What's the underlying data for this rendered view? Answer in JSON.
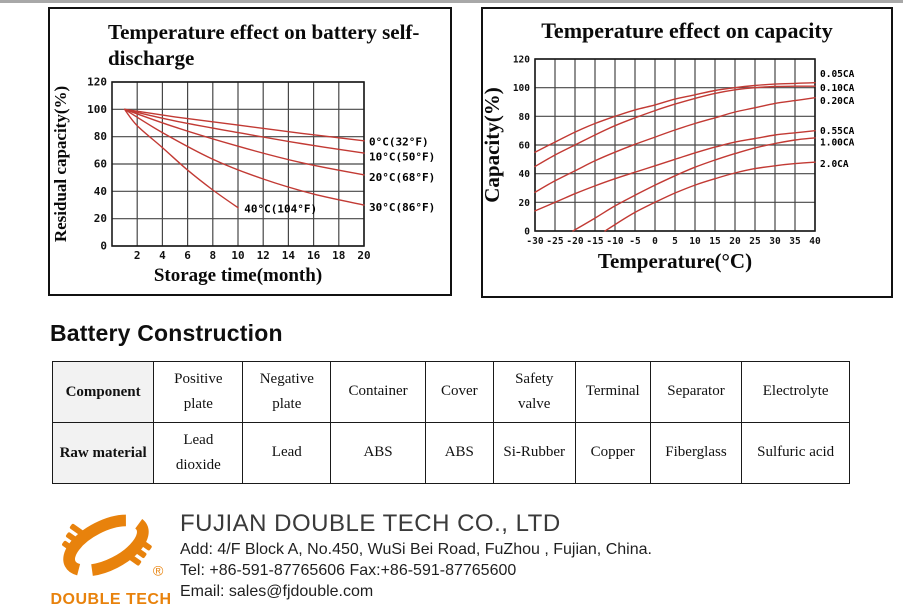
{
  "page": {
    "background": "#ffffff",
    "accent_red": "#c23a34",
    "grid_color": "#474747",
    "brand_orange": "#e8820c"
  },
  "chart_data": [
    {
      "type": "line",
      "title": "Temperature effect on battery self-discharge",
      "xlabel": "Storage time(month)",
      "ylabel": "Residual capacity(%)",
      "xlim": [
        0,
        20
      ],
      "ylim": [
        0,
        120
      ],
      "xticks": [
        2,
        4,
        6,
        8,
        10,
        12,
        14,
        16,
        18,
        20
      ],
      "yticks": [
        0,
        20,
        40,
        60,
        80,
        100,
        120
      ],
      "grid": true,
      "legend_position": "right-of-plot",
      "line_color": "#c23a34",
      "series": [
        {
          "name": "0°C(32°F)",
          "label_y": 76,
          "points": [
            [
              1,
              100
            ],
            [
              5,
              94.5
            ],
            [
              10,
              88.5
            ],
            [
              15,
              82.5
            ],
            [
              20,
              77
            ]
          ]
        },
        {
          "name": "10°C(50°F)",
          "label_y": 65,
          "points": [
            [
              1,
              100
            ],
            [
              5,
              91.5
            ],
            [
              10,
              83
            ],
            [
              15,
              75
            ],
            [
              20,
              68
            ]
          ]
        },
        {
          "name": "20°C(68°F)",
          "label_y": 50,
          "points": [
            [
              1,
              100
            ],
            [
              5,
              87
            ],
            [
              10,
              73
            ],
            [
              15,
              61
            ],
            [
              20,
              52
            ]
          ]
        },
        {
          "name": "30°C(86°F)",
          "label_y": 28,
          "points": [
            [
              1,
              100
            ],
            [
              4,
              83
            ],
            [
              8,
              63.5
            ],
            [
              12,
              49
            ],
            [
              16,
              38
            ],
            [
              20,
              30
            ]
          ]
        },
        {
          "name": "40°C(104°F)",
          "label_pos": [
            10.5,
            27
          ],
          "points": [
            [
              1,
              100
            ],
            [
              2,
              88
            ],
            [
              4,
              72
            ],
            [
              6,
              55.5
            ],
            [
              8,
              41
            ],
            [
              10,
              28
            ]
          ]
        }
      ]
    },
    {
      "type": "line",
      "title": "Temperature effect on capacity",
      "xlabel": "Temperature(°C)",
      "ylabel": "Capacity(%)",
      "xlim": [
        -30,
        40
      ],
      "ylim": [
        0,
        120
      ],
      "xticks": [
        -30,
        -25,
        -20,
        -15,
        -10,
        -5,
        0,
        5,
        10,
        15,
        20,
        25,
        30,
        35,
        40
      ],
      "yticks": [
        0,
        20,
        40,
        60,
        80,
        100,
        120
      ],
      "grid": true,
      "legend_position": "right-of-plot",
      "line_color": "#c23a34",
      "series": [
        {
          "name": "0.05CA",
          "label_y": 110,
          "points": [
            [
              -30,
              55
            ],
            [
              -25,
              62
            ],
            [
              -20,
              69
            ],
            [
              -15,
              75
            ],
            [
              -10,
              80
            ],
            [
              -5,
              84.5
            ],
            [
              0,
              88
            ],
            [
              5,
              92
            ],
            [
              10,
              95
            ],
            [
              15,
              98
            ],
            [
              20,
              100
            ],
            [
              25,
              101.5
            ],
            [
              30,
              102.5
            ],
            [
              35,
              103
            ],
            [
              40,
              103.5
            ]
          ]
        },
        {
          "name": "0.10CA",
          "label_y": 100,
          "points": [
            [
              -30,
              45
            ],
            [
              -25,
              53
            ],
            [
              -20,
              60
            ],
            [
              -15,
              67
            ],
            [
              -10,
              73.5
            ],
            [
              -5,
              79
            ],
            [
              0,
              84
            ],
            [
              5,
              88.5
            ],
            [
              10,
              92.5
            ],
            [
              15,
              96
            ],
            [
              20,
              98.5
            ],
            [
              25,
              100
            ],
            [
              30,
              100.8
            ],
            [
              35,
              101
            ],
            [
              40,
              101
            ]
          ]
        },
        {
          "name": "0.20CA",
          "label_y": 91,
          "points": [
            [
              -30,
              27
            ],
            [
              -25,
              35
            ],
            [
              -20,
              42
            ],
            [
              -15,
              49
            ],
            [
              -10,
              55
            ],
            [
              -5,
              60.5
            ],
            [
              0,
              65.5
            ],
            [
              5,
              70.5
            ],
            [
              10,
              75
            ],
            [
              15,
              79
            ],
            [
              20,
              83
            ],
            [
              25,
              86
            ],
            [
              30,
              89
            ],
            [
              35,
              91
            ],
            [
              40,
              93
            ]
          ]
        },
        {
          "name": "0.55CA",
          "label_y": 70,
          "points": [
            [
              -30,
              14
            ],
            [
              -25,
              20
            ],
            [
              -20,
              26
            ],
            [
              -15,
              31.5
            ],
            [
              -10,
              36.5
            ],
            [
              -5,
              41
            ],
            [
              0,
              45.5
            ],
            [
              5,
              50
            ],
            [
              10,
              54.5
            ],
            [
              15,
              58.5
            ],
            [
              20,
              62
            ],
            [
              25,
              64.5
            ],
            [
              30,
              67
            ],
            [
              35,
              68.5
            ],
            [
              40,
              70
            ]
          ]
        },
        {
          "name": "1.00CA",
          "label_y": 62,
          "points": [
            [
              -20.5,
              0
            ],
            [
              -15,
              9
            ],
            [
              -10,
              17.5
            ],
            [
              -5,
              25
            ],
            [
              0,
              32
            ],
            [
              5,
              38.5
            ],
            [
              10,
              44.5
            ],
            [
              15,
              49.5
            ],
            [
              20,
              54
            ],
            [
              25,
              58
            ],
            [
              30,
              61
            ],
            [
              35,
              63.5
            ],
            [
              40,
              65
            ]
          ]
        },
        {
          "name": "2.0CA",
          "label_y": 47,
          "points": [
            [
              -12.5,
              0
            ],
            [
              -10,
              4.5
            ],
            [
              -5,
              13
            ],
            [
              0,
              20
            ],
            [
              5,
              26.5
            ],
            [
              10,
              32
            ],
            [
              15,
              36.5
            ],
            [
              20,
              40.5
            ],
            [
              25,
              43.5
            ],
            [
              30,
              45.5
            ],
            [
              35,
              47
            ],
            [
              40,
              48
            ]
          ]
        }
      ]
    }
  ],
  "construction": {
    "heading": "Battery Construction",
    "table": {
      "rows": [
        {
          "cells": [
            "Component",
            "Positive plate",
            "Negative plate",
            "Container",
            "Cover",
            "Safety valve",
            "Terminal",
            "Separator",
            "Electrolyte"
          ]
        },
        {
          "cells": [
            "Raw material",
            "Lead dioxide",
            "Lead",
            "ABS",
            "ABS",
            "Si-Rubber",
            "Copper",
            "Fiberglass",
            "Sulfuric acid"
          ]
        }
      ]
    }
  },
  "footer": {
    "logo_wordmark": "DOUBLE TECH",
    "registered_mark": "®",
    "company": "FUJIAN DOUBLE TECH CO., LTD",
    "address": "Add: 4/F Block A, No.450, WuSi Bei Road, FuZhou , Fujian, China.",
    "tel_fax": "Tel: +86-591-87765606  Fax:+86-591-87765600",
    "email": "Email: sales@fjdouble.com"
  }
}
